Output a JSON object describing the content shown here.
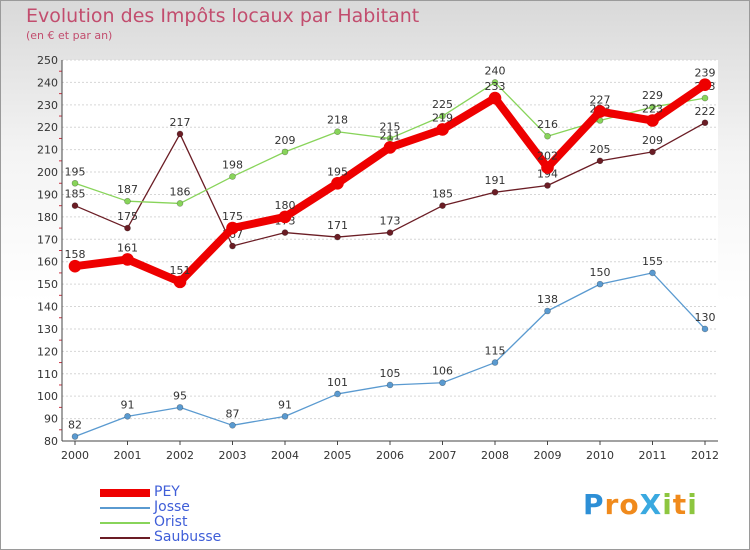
{
  "chart_data": {
    "type": "line",
    "title": "Evolution des Impôts locaux par Habitant",
    "subtitle": "(en € et par an)",
    "xlabel": "",
    "ylabel": "",
    "ylim": [
      80,
      250
    ],
    "ytick_step": 10,
    "grid": true,
    "legend_position": "bottom-left",
    "x": [
      "2000",
      "2001",
      "2002",
      "2003",
      "2004",
      "2005",
      "2006",
      "2007",
      "2008",
      "2009",
      "2010",
      "2011",
      "2012"
    ],
    "series": [
      {
        "name": "Saubusse",
        "color": "#6b1d25",
        "values": [
          185,
          175,
          217,
          167,
          173,
          171,
          173,
          185,
          191,
          194,
          205,
          209,
          222
        ]
      },
      {
        "name": "Orist",
        "color": "#88d45a",
        "values": [
          195,
          187,
          186,
          198,
          209,
          218,
          215,
          225,
          240,
          216,
          223,
          229,
          233
        ]
      },
      {
        "name": "Josse",
        "color": "#5a9ad0",
        "values": [
          82,
          91,
          95,
          87,
          91,
          101,
          105,
          106,
          115,
          138,
          150,
          155,
          130
        ]
      },
      {
        "name": "PEY",
        "color": "#ee0000",
        "values": [
          158,
          161,
          151,
          175,
          180,
          195,
          211,
          219,
          233,
          202,
          227,
          223,
          239
        ]
      }
    ]
  },
  "legend": [
    {
      "name": "PEY",
      "color": "#ee0000"
    },
    {
      "name": "Josse",
      "color": "#5a9ad0"
    },
    {
      "name": "Orist",
      "color": "#88d45a"
    },
    {
      "name": "Saubusse",
      "color": "#6b1d25"
    }
  ],
  "brand": {
    "text": "ProXiti",
    "letters": [
      {
        "ch": "P",
        "color": "#2d8fd6"
      },
      {
        "ch": "r",
        "color": "#f08a1c"
      },
      {
        "ch": "o",
        "color": "#f08a1c"
      },
      {
        "ch": "X",
        "color": "#3aa9e0"
      },
      {
        "ch": "i",
        "color": "#8dc63f"
      },
      {
        "ch": "t",
        "color": "#f08a1c"
      },
      {
        "ch": "i",
        "color": "#8dc63f"
      }
    ]
  }
}
